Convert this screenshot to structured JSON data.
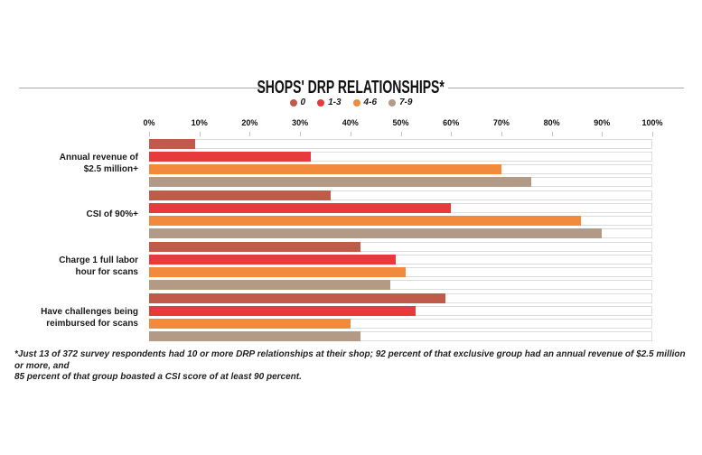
{
  "title": "SHOPS' DRP RELATIONSHIPS*",
  "footnote": "*Just 13 of 372 survey respondents had 10 or more DRP relationships at their shop; 92 percent of that exclusive group had an annual revenue of $2.5 million or more, and\n85 percent of that group boasted a CSI score of at least 90 percent.",
  "category_lines": [
    "Annual revenue of\n$2.5 million+",
    "CSI of 90%+",
    "Charge 1 full labor\nhour for scans",
    "Have challenges being\nreimbursed for scans"
  ],
  "colors": {
    "track_border": "#dcdcdc",
    "tick": "#c4c4c4",
    "rule": "#a9a9a9"
  },
  "chart_data": {
    "type": "bar",
    "orientation": "horizontal",
    "title": "SHOPS' DRP RELATIONSHIPS*",
    "categories": [
      "Annual revenue of $2.5 million+",
      "CSI of 90%+",
      "Charge 1 full labor hour for scans",
      "Have challenges being reimbursed for scans"
    ],
    "series": [
      {
        "name": "0",
        "color": "#c05a4b",
        "values": [
          9,
          36,
          42,
          59
        ]
      },
      {
        "name": "1-3",
        "color": "#e63a3c",
        "values": [
          32,
          60,
          49,
          53
        ]
      },
      {
        "name": "4-6",
        "color": "#f28a3d",
        "values": [
          70,
          86,
          51,
          40
        ]
      },
      {
        "name": "7-9",
        "color": "#b39a87",
        "values": [
          76,
          90,
          48,
          42
        ]
      }
    ],
    "xlabel": "",
    "ylabel": "",
    "xlim": [
      0,
      100
    ],
    "x_ticks": [
      "0%",
      "10%",
      "20%",
      "30%",
      "40%",
      "50%",
      "60%",
      "70%",
      "80%",
      "90%",
      "100%"
    ],
    "legend_position": "top",
    "grid": false
  }
}
